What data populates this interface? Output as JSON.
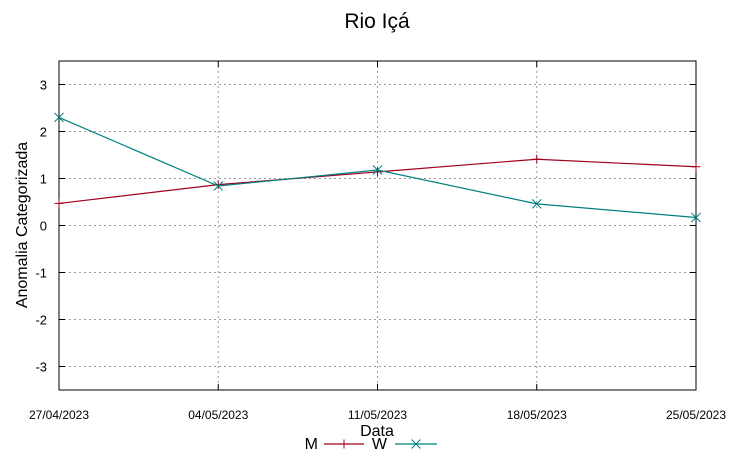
{
  "chart_data": {
    "type": "line",
    "title": "Rio Içá",
    "xlabel": "Data",
    "ylabel": "Anomalia Categorizada",
    "categories": [
      "27/04/2023",
      "04/05/2023",
      "11/05/2023",
      "18/05/2023",
      "25/05/2023"
    ],
    "ylim": [
      -3.5,
      3.5
    ],
    "yticks": [
      -3,
      -2,
      -1,
      0,
      1,
      2,
      3
    ],
    "grid": true,
    "legend_position": "bottom-center",
    "series": [
      {
        "name": "M",
        "color": "#a0001e",
        "marker": "plus",
        "values": [
          0.47,
          0.87,
          1.14,
          1.41,
          1.25
        ]
      },
      {
        "name": "W",
        "color": "#00807e",
        "marker": "cross",
        "values": [
          2.3,
          0.84,
          1.18,
          0.46,
          0.17
        ]
      }
    ]
  }
}
